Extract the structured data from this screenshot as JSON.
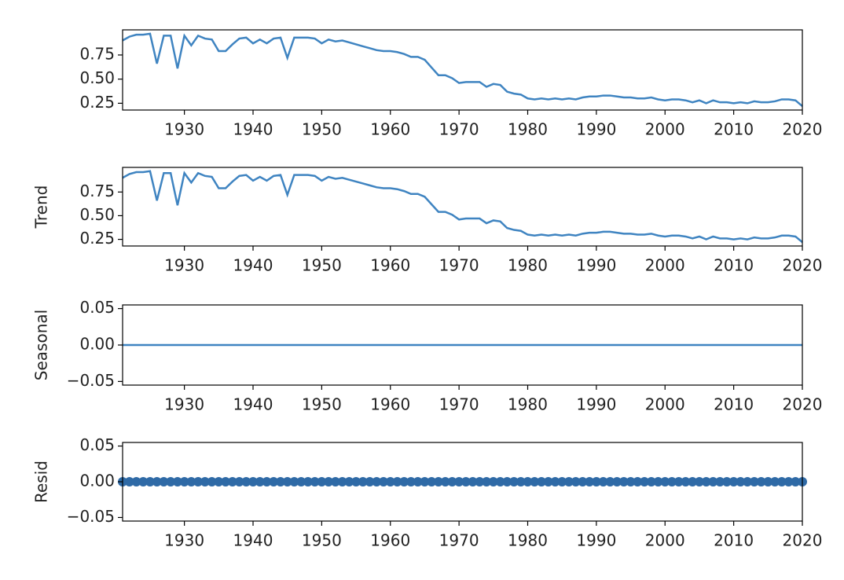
{
  "chart_data": [
    {
      "type": "line",
      "color": "#3f84c1",
      "x": [
        1921,
        1922,
        1923,
        1924,
        1925,
        1926,
        1927,
        1928,
        1929,
        1930,
        1931,
        1932,
        1933,
        1934,
        1935,
        1936,
        1937,
        1938,
        1939,
        1940,
        1941,
        1942,
        1943,
        1944,
        1945,
        1946,
        1947,
        1948,
        1949,
        1950,
        1951,
        1952,
        1953,
        1954,
        1955,
        1956,
        1957,
        1958,
        1959,
        1960,
        1961,
        1962,
        1963,
        1964,
        1965,
        1966,
        1967,
        1968,
        1969,
        1970,
        1971,
        1972,
        1973,
        1974,
        1975,
        1976,
        1977,
        1978,
        1979,
        1980,
        1981,
        1982,
        1983,
        1984,
        1985,
        1986,
        1987,
        1988,
        1989,
        1990,
        1991,
        1992,
        1993,
        1994,
        1995,
        1996,
        1997,
        1998,
        1999,
        2000,
        2001,
        2002,
        2003,
        2004,
        2005,
        2006,
        2007,
        2008,
        2009,
        2010,
        2011,
        2012,
        2013,
        2014,
        2015,
        2016,
        2017,
        2018,
        2019,
        2020
      ],
      "values": [
        0.9,
        0.94,
        0.96,
        0.96,
        0.97,
        0.66,
        0.95,
        0.95,
        0.61,
        0.95,
        0.85,
        0.95,
        0.92,
        0.91,
        0.79,
        0.79,
        0.86,
        0.92,
        0.93,
        0.87,
        0.91,
        0.87,
        0.92,
        0.93,
        0.72,
        0.93,
        0.93,
        0.93,
        0.92,
        0.87,
        0.91,
        0.89,
        0.9,
        0.88,
        0.86,
        0.84,
        0.82,
        0.8,
        0.79,
        0.79,
        0.78,
        0.76,
        0.73,
        0.73,
        0.7,
        0.62,
        0.54,
        0.54,
        0.51,
        0.46,
        0.47,
        0.47,
        0.47,
        0.42,
        0.45,
        0.44,
        0.37,
        0.35,
        0.34,
        0.3,
        0.29,
        0.3,
        0.29,
        0.3,
        0.29,
        0.3,
        0.29,
        0.31,
        0.32,
        0.32,
        0.33,
        0.33,
        0.32,
        0.31,
        0.31,
        0.3,
        0.3,
        0.31,
        0.29,
        0.28,
        0.29,
        0.29,
        0.28,
        0.26,
        0.28,
        0.25,
        0.28,
        0.26,
        0.26,
        0.25,
        0.26,
        0.25,
        0.27,
        0.26,
        0.26,
        0.27,
        0.29,
        0.29,
        0.28,
        0.22
      ],
      "xlim": [
        1921,
        2020
      ],
      "ylim": [
        0.18,
        1.01
      ],
      "xticks": [
        1930,
        1940,
        1950,
        1960,
        1970,
        1980,
        1990,
        2000,
        2010,
        2020
      ],
      "yticks": [
        {
          "value": 0.25,
          "label": "0.25"
        },
        {
          "value": 0.5,
          "label": "0.50"
        },
        {
          "value": 0.75,
          "label": "0.75"
        }
      ]
    },
    {
      "type": "line",
      "ylabel": "Trend",
      "color": "#3f84c1",
      "x": [
        1921,
        1922,
        1923,
        1924,
        1925,
        1926,
        1927,
        1928,
        1929,
        1930,
        1931,
        1932,
        1933,
        1934,
        1935,
        1936,
        1937,
        1938,
        1939,
        1940,
        1941,
        1942,
        1943,
        1944,
        1945,
        1946,
        1947,
        1948,
        1949,
        1950,
        1951,
        1952,
        1953,
        1954,
        1955,
        1956,
        1957,
        1958,
        1959,
        1960,
        1961,
        1962,
        1963,
        1964,
        1965,
        1966,
        1967,
        1968,
        1969,
        1970,
        1971,
        1972,
        1973,
        1974,
        1975,
        1976,
        1977,
        1978,
        1979,
        1980,
        1981,
        1982,
        1983,
        1984,
        1985,
        1986,
        1987,
        1988,
        1989,
        1990,
        1991,
        1992,
        1993,
        1994,
        1995,
        1996,
        1997,
        1998,
        1999,
        2000,
        2001,
        2002,
        2003,
        2004,
        2005,
        2006,
        2007,
        2008,
        2009,
        2010,
        2011,
        2012,
        2013,
        2014,
        2015,
        2016,
        2017,
        2018,
        2019,
        2020
      ],
      "values": [
        0.9,
        0.94,
        0.96,
        0.96,
        0.97,
        0.66,
        0.95,
        0.95,
        0.61,
        0.95,
        0.85,
        0.95,
        0.92,
        0.91,
        0.79,
        0.79,
        0.86,
        0.92,
        0.93,
        0.87,
        0.91,
        0.87,
        0.92,
        0.93,
        0.72,
        0.93,
        0.93,
        0.93,
        0.92,
        0.87,
        0.91,
        0.89,
        0.9,
        0.88,
        0.86,
        0.84,
        0.82,
        0.8,
        0.79,
        0.79,
        0.78,
        0.76,
        0.73,
        0.73,
        0.7,
        0.62,
        0.54,
        0.54,
        0.51,
        0.46,
        0.47,
        0.47,
        0.47,
        0.42,
        0.45,
        0.44,
        0.37,
        0.35,
        0.34,
        0.3,
        0.29,
        0.3,
        0.29,
        0.3,
        0.29,
        0.3,
        0.29,
        0.31,
        0.32,
        0.32,
        0.33,
        0.33,
        0.32,
        0.31,
        0.31,
        0.3,
        0.3,
        0.31,
        0.29,
        0.28,
        0.29,
        0.29,
        0.28,
        0.26,
        0.28,
        0.25,
        0.28,
        0.26,
        0.26,
        0.25,
        0.26,
        0.25,
        0.27,
        0.26,
        0.26,
        0.27,
        0.29,
        0.29,
        0.28,
        0.22
      ],
      "xlim": [
        1921,
        2020
      ],
      "ylim": [
        0.18,
        1.01
      ],
      "xticks": [
        1930,
        1940,
        1950,
        1960,
        1970,
        1980,
        1990,
        2000,
        2010,
        2020
      ],
      "yticks": [
        {
          "value": 0.25,
          "label": "0.25"
        },
        {
          "value": 0.5,
          "label": "0.50"
        },
        {
          "value": 0.75,
          "label": "0.75"
        }
      ]
    },
    {
      "type": "line",
      "ylabel": "Seasonal",
      "color": "#3f84c1",
      "x": [
        1921,
        1922,
        1923,
        1924,
        1925,
        1926,
        1927,
        1928,
        1929,
        1930,
        1931,
        1932,
        1933,
        1934,
        1935,
        1936,
        1937,
        1938,
        1939,
        1940,
        1941,
        1942,
        1943,
        1944,
        1945,
        1946,
        1947,
        1948,
        1949,
        1950,
        1951,
        1952,
        1953,
        1954,
        1955,
        1956,
        1957,
        1958,
        1959,
        1960,
        1961,
        1962,
        1963,
        1964,
        1965,
        1966,
        1967,
        1968,
        1969,
        1970,
        1971,
        1972,
        1973,
        1974,
        1975,
        1976,
        1977,
        1978,
        1979,
        1980,
        1981,
        1982,
        1983,
        1984,
        1985,
        1986,
        1987,
        1988,
        1989,
        1990,
        1991,
        1992,
        1993,
        1994,
        1995,
        1996,
        1997,
        1998,
        1999,
        2000,
        2001,
        2002,
        2003,
        2004,
        2005,
        2006,
        2007,
        2008,
        2009,
        2010,
        2011,
        2012,
        2013,
        2014,
        2015,
        2016,
        2017,
        2018,
        2019,
        2020
      ],
      "values": [
        0,
        0,
        0,
        0,
        0,
        0,
        0,
        0,
        0,
        0,
        0,
        0,
        0,
        0,
        0,
        0,
        0,
        0,
        0,
        0,
        0,
        0,
        0,
        0,
        0,
        0,
        0,
        0,
        0,
        0,
        0,
        0,
        0,
        0,
        0,
        0,
        0,
        0,
        0,
        0,
        0,
        0,
        0,
        0,
        0,
        0,
        0,
        0,
        0,
        0,
        0,
        0,
        0,
        0,
        0,
        0,
        0,
        0,
        0,
        0,
        0,
        0,
        0,
        0,
        0,
        0,
        0,
        0,
        0,
        0,
        0,
        0,
        0,
        0,
        0,
        0,
        0,
        0,
        0,
        0,
        0,
        0,
        0,
        0,
        0,
        0,
        0,
        0,
        0,
        0,
        0,
        0,
        0,
        0,
        0,
        0,
        0,
        0,
        0,
        0
      ],
      "xlim": [
        1921,
        2020
      ],
      "ylim": [
        -0.055,
        0.055
      ],
      "xticks": [
        1930,
        1940,
        1950,
        1960,
        1970,
        1980,
        1990,
        2000,
        2010,
        2020
      ],
      "yticks": [
        {
          "value": -0.05,
          "label": "−0.05"
        },
        {
          "value": 0,
          "label": "0.00"
        },
        {
          "value": 0.05,
          "label": "0.05"
        }
      ]
    },
    {
      "type": "scatter",
      "ylabel": "Resid",
      "color": "#2f6aa6",
      "x": [
        1921,
        1922,
        1923,
        1924,
        1925,
        1926,
        1927,
        1928,
        1929,
        1930,
        1931,
        1932,
        1933,
        1934,
        1935,
        1936,
        1937,
        1938,
        1939,
        1940,
        1941,
        1942,
        1943,
        1944,
        1945,
        1946,
        1947,
        1948,
        1949,
        1950,
        1951,
        1952,
        1953,
        1954,
        1955,
        1956,
        1957,
        1958,
        1959,
        1960,
        1961,
        1962,
        1963,
        1964,
        1965,
        1966,
        1967,
        1968,
        1969,
        1970,
        1971,
        1972,
        1973,
        1974,
        1975,
        1976,
        1977,
        1978,
        1979,
        1980,
        1981,
        1982,
        1983,
        1984,
        1985,
        1986,
        1987,
        1988,
        1989,
        1990,
        1991,
        1992,
        1993,
        1994,
        1995,
        1996,
        1997,
        1998,
        1999,
        2000,
        2001,
        2002,
        2003,
        2004,
        2005,
        2006,
        2007,
        2008,
        2009,
        2010,
        2011,
        2012,
        2013,
        2014,
        2015,
        2016,
        2017,
        2018,
        2019,
        2020
      ],
      "values": [
        0,
        0,
        0,
        0,
        0,
        0,
        0,
        0,
        0,
        0,
        0,
        0,
        0,
        0,
        0,
        0,
        0,
        0,
        0,
        0,
        0,
        0,
        0,
        0,
        0,
        0,
        0,
        0,
        0,
        0,
        0,
        0,
        0,
        0,
        0,
        0,
        0,
        0,
        0,
        0,
        0,
        0,
        0,
        0,
        0,
        0,
        0,
        0,
        0,
        0,
        0,
        0,
        0,
        0,
        0,
        0,
        0,
        0,
        0,
        0,
        0,
        0,
        0,
        0,
        0,
        0,
        0,
        0,
        0,
        0,
        0,
        0,
        0,
        0,
        0,
        0,
        0,
        0,
        0,
        0,
        0,
        0,
        0,
        0,
        0,
        0,
        0,
        0,
        0,
        0,
        0,
        0,
        0,
        0,
        0,
        0,
        0,
        0,
        0,
        0
      ],
      "xlim": [
        1921,
        2020
      ],
      "ylim": [
        -0.055,
        0.055
      ],
      "xticks": [
        1930,
        1940,
        1950,
        1960,
        1970,
        1980,
        1990,
        2000,
        2010,
        2020
      ],
      "yticks": [
        {
          "value": -0.05,
          "label": "−0.05"
        },
        {
          "value": 0,
          "label": "0.00"
        },
        {
          "value": 0.05,
          "label": "0.05"
        }
      ]
    }
  ]
}
